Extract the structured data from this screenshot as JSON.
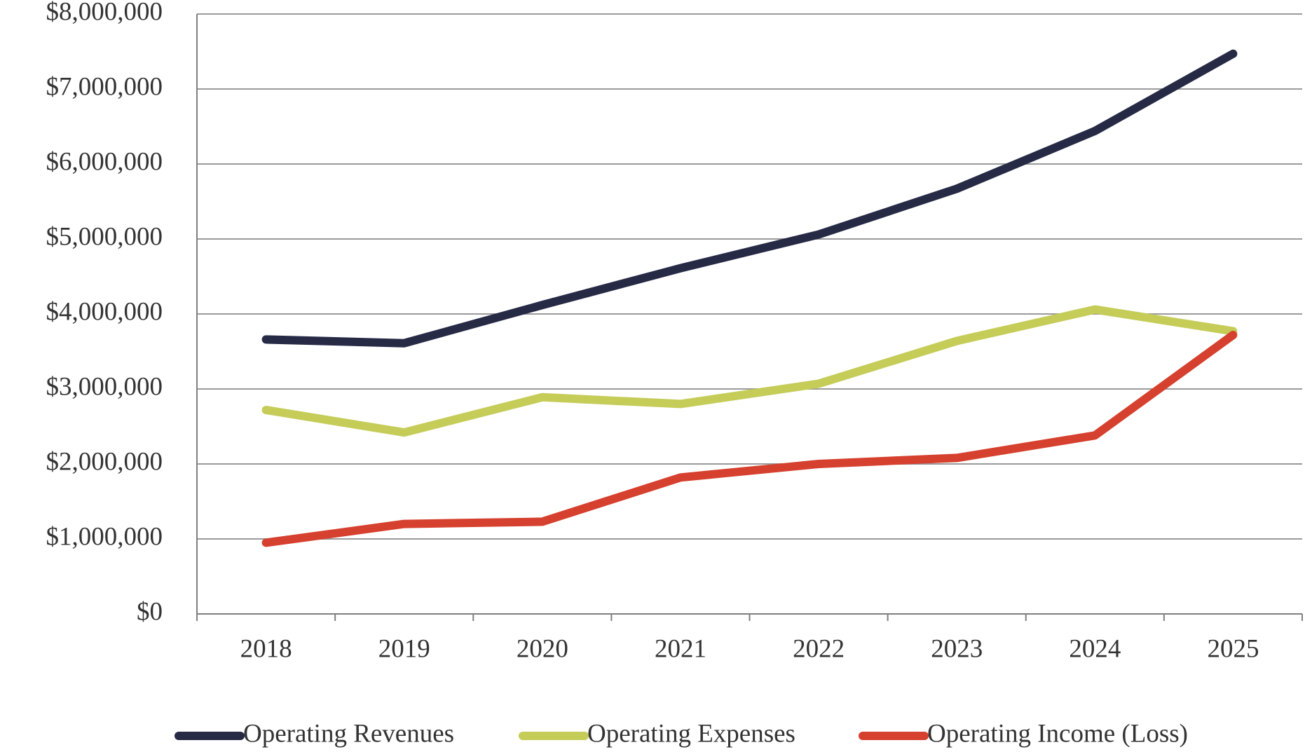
{
  "chart_data": {
    "type": "line",
    "categories": [
      "2018",
      "2019",
      "2020",
      "2021",
      "2022",
      "2023",
      "2024",
      "2025"
    ],
    "series": [
      {
        "name": "Operating Revenues",
        "color": "#262a45",
        "values": [
          3660000,
          3610000,
          4120000,
          4610000,
          5060000,
          5670000,
          6440000,
          7470000
        ]
      },
      {
        "name": "Operating Expenses",
        "color": "#c5cc57",
        "values": [
          2720000,
          2420000,
          2890000,
          2800000,
          3070000,
          3640000,
          4060000,
          3770000
        ]
      },
      {
        "name": "Operating Income (Loss)",
        "color": "#d6402e",
        "values": [
          950000,
          1200000,
          1230000,
          1820000,
          2000000,
          2080000,
          2380000,
          3720000
        ]
      }
    ],
    "ylim": [
      0,
      8000000
    ],
    "yticks": [
      {
        "value": 0,
        "label": "$0"
      },
      {
        "value": 1000000,
        "label": "$1,000,000"
      },
      {
        "value": 2000000,
        "label": "$2,000,000"
      },
      {
        "value": 3000000,
        "label": "$3,000,000"
      },
      {
        "value": 4000000,
        "label": "$4,000,000"
      },
      {
        "value": 5000000,
        "label": "$5,000,000"
      },
      {
        "value": 6000000,
        "label": "$6,000,000"
      },
      {
        "value": 7000000,
        "label": "$7,000,000"
      },
      {
        "value": 8000000,
        "label": "$8,000,000"
      }
    ],
    "grid": true,
    "legend": "bottom"
  }
}
